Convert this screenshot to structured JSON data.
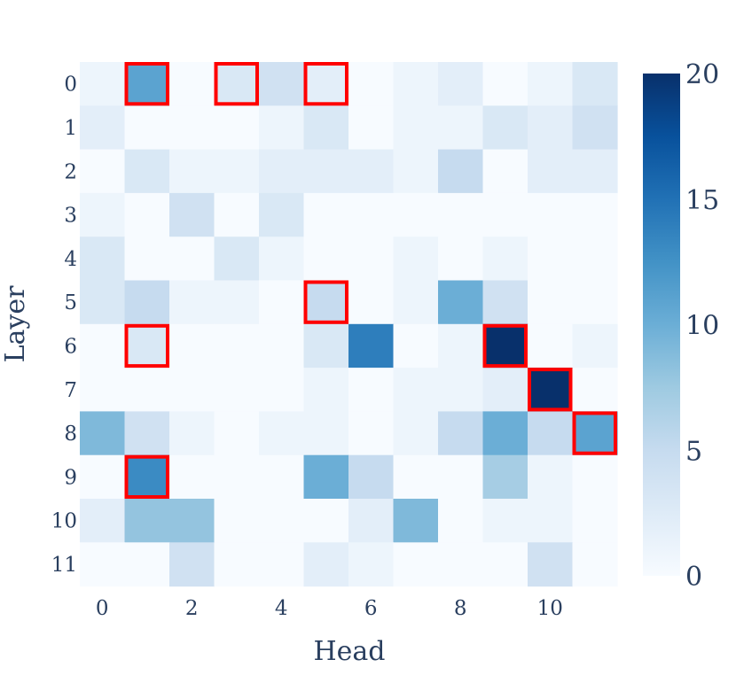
{
  "chart_data": {
    "type": "heatmap",
    "xlabel": "Head",
    "ylabel": "Layer",
    "x_categories": [
      0,
      1,
      2,
      3,
      4,
      5,
      6,
      7,
      8,
      9,
      10,
      11
    ],
    "y_categories": [
      0,
      1,
      2,
      3,
      4,
      5,
      6,
      7,
      8,
      9,
      10,
      11
    ],
    "x_tick_labels": [
      "0",
      "2",
      "4",
      "6",
      "8",
      "10"
    ],
    "x_tick_values": [
      0,
      2,
      4,
      6,
      8,
      10
    ],
    "y_tick_labels": [
      "0",
      "1",
      "2",
      "3",
      "4",
      "5",
      "6",
      "7",
      "8",
      "9",
      "10",
      "11"
    ],
    "colorscale": "Blues",
    "colorbar": {
      "range": [
        0,
        20
      ],
      "tick_values": [
        0,
        5,
        10,
        15,
        20
      ],
      "tick_labels": [
        "0",
        "5",
        "10",
        "15",
        "20"
      ]
    },
    "z": [
      [
        1,
        11,
        0,
        3,
        4,
        2,
        0,
        1,
        2,
        0,
        1,
        3
      ],
      [
        2,
        0,
        0,
        0,
        1,
        3,
        0,
        1,
        1,
        3,
        2,
        4
      ],
      [
        0,
        3,
        1,
        1,
        2,
        2,
        2,
        1,
        5,
        0,
        2,
        2
      ],
      [
        1,
        0,
        4,
        0,
        3,
        0,
        0,
        0,
        0,
        0,
        0,
        0
      ],
      [
        3,
        0,
        0,
        3,
        1,
        0,
        0,
        1,
        0,
        1,
        0,
        0
      ],
      [
        3,
        5,
        1,
        1,
        0,
        5,
        0,
        1,
        10,
        4,
        0,
        0
      ],
      [
        0,
        3,
        0,
        0,
        0,
        3,
        14,
        0,
        1,
        20,
        0,
        1
      ],
      [
        0,
        0,
        0,
        0,
        0,
        1,
        0,
        1,
        1,
        2,
        20,
        0
      ],
      [
        9,
        4,
        1,
        0,
        1,
        1,
        0,
        1,
        5,
        10,
        5,
        11
      ],
      [
        0,
        13,
        0,
        0,
        0,
        10,
        5,
        0,
        0,
        7,
        1,
        0
      ],
      [
        2,
        8,
        8,
        0,
        0,
        0,
        2,
        9,
        0,
        1,
        1,
        0
      ],
      [
        0,
        0,
        4,
        0,
        0,
        2,
        1,
        0,
        0,
        0,
        4,
        0
      ]
    ],
    "highlighted_cells": [
      {
        "layer": 0,
        "head": 1
      },
      {
        "layer": 0,
        "head": 3
      },
      {
        "layer": 0,
        "head": 5
      },
      {
        "layer": 5,
        "head": 5
      },
      {
        "layer": 6,
        "head": 1
      },
      {
        "layer": 6,
        "head": 9
      },
      {
        "layer": 7,
        "head": 10
      },
      {
        "layer": 8,
        "head": 11
      },
      {
        "layer": 9,
        "head": 1
      }
    ],
    "highlight_color": "#ff0000"
  }
}
